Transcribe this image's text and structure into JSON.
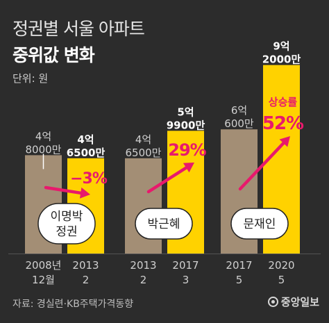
{
  "header": {
    "title": "정권별 서울 아파트",
    "subtitle": "중위값 변화",
    "unit": "단위: 원"
  },
  "footer": {
    "source": "자료: 경실련·KB주택가격동향",
    "logo": "중앙일보"
  },
  "chart_data": {
    "type": "bar",
    "title": "정권별 서울 아파트 중위값 변화",
    "unit_label": "단위: 원",
    "ylim": [
      0,
      100000
    ],
    "groups": [
      {
        "government": [
          "이명박",
          "정권"
        ],
        "change_label": "−3%",
        "bars": [
          {
            "x_label": [
              "2008년",
              "12월"
            ],
            "value_label": [
              "4억",
              "8000만"
            ],
            "value": 48000,
            "highlight": false
          },
          {
            "x_label": [
              "2013",
              "2"
            ],
            "value_label": [
              "4억",
              "6500만"
            ],
            "value": 46500,
            "highlight": true
          }
        ]
      },
      {
        "government": [
          "박근혜"
        ],
        "change_label": "29%",
        "bars": [
          {
            "x_label": [
              "2013",
              "2"
            ],
            "value_label": [
              "4억",
              "6500만"
            ],
            "value": 46500,
            "highlight": false
          },
          {
            "x_label": [
              "2017",
              "3"
            ],
            "value_label": [
              "5억",
              "9900만"
            ],
            "value": 59900,
            "highlight": true
          }
        ]
      },
      {
        "government": [
          "문재인"
        ],
        "change_label": "52%",
        "change_caption": "상승률",
        "bars": [
          {
            "x_label": [
              "2017",
              "5"
            ],
            "value_label": [
              "6억",
              "600만"
            ],
            "value": 60600,
            "highlight": false
          },
          {
            "x_label": [
              "2020",
              "5"
            ],
            "value_label": [
              "9억",
              "2000만"
            ],
            "value": 92000,
            "highlight": true
          }
        ]
      }
    ],
    "colors": {
      "background": "#2c2c2c",
      "before_bar": "#a38e75",
      "after_bar": "#ffd200",
      "arrow": "#e8196c",
      "text": "#ffffff",
      "muted_text": "#d0d0d0"
    }
  }
}
